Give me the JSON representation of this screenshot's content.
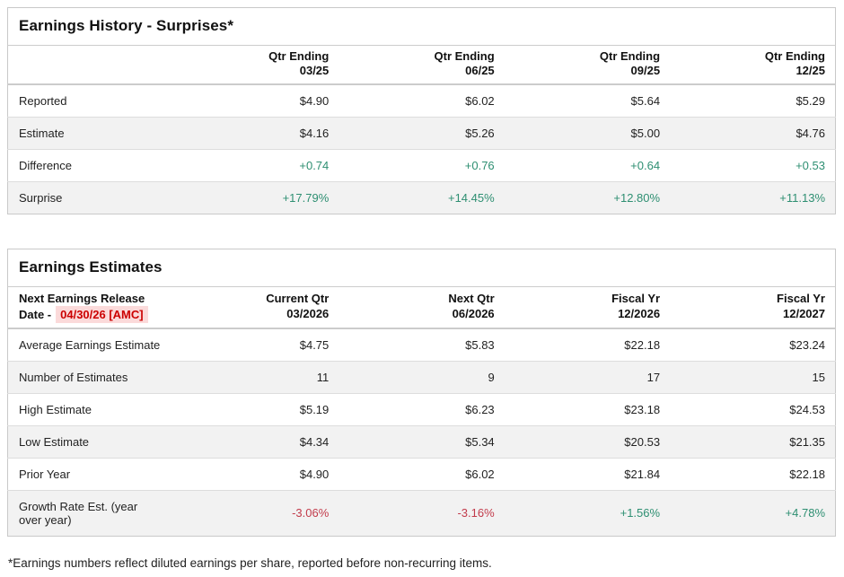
{
  "colors": {
    "positive_green": "#2e8f72",
    "negative_red": "#c23b4b",
    "release_date_red": "#cc0000",
    "release_date_highlight_bg": "#fbdada",
    "alt_row_bg": "#f2f2f2"
  },
  "earnings_history": {
    "title": "Earnings History - Surprises*",
    "columns": [
      {
        "line1": "Qtr Ending",
        "line2": "03/25"
      },
      {
        "line1": "Qtr Ending",
        "line2": "06/25"
      },
      {
        "line1": "Qtr Ending",
        "line2": "09/25"
      },
      {
        "line1": "Qtr Ending",
        "line2": "12/25"
      }
    ],
    "rows": [
      {
        "label": "Reported",
        "values": [
          "$4.90",
          "$6.02",
          "$5.64",
          "$5.29"
        ],
        "value_class": "dark"
      },
      {
        "label": "Estimate",
        "values": [
          "$4.16",
          "$5.26",
          "$5.00",
          "$4.76"
        ],
        "value_class": "dark"
      },
      {
        "label": "Difference",
        "values": [
          "+0.74",
          "+0.76",
          "+0.64",
          "+0.53"
        ],
        "value_class": "green"
      },
      {
        "label": "Surprise",
        "values": [
          "+17.79%",
          "+14.45%",
          "+12.80%",
          "+11.13%"
        ],
        "value_class": "green"
      }
    ]
  },
  "earnings_estimates": {
    "title": "Earnings Estimates",
    "release_date_label": "Next Earnings Release Date -",
    "release_date_value": "04/30/26 [AMC]",
    "columns": [
      {
        "line1": "Current Qtr",
        "line2": "03/2026"
      },
      {
        "line1": "Next Qtr",
        "line2": "06/2026"
      },
      {
        "line1": "Fiscal Yr",
        "line2": "12/2026"
      },
      {
        "line1": "Fiscal Yr",
        "line2": "12/2027"
      }
    ],
    "rows": [
      {
        "label": "Average Earnings Estimate",
        "values": [
          "$4.75",
          "$5.83",
          "$22.18",
          "$23.24"
        ],
        "value_class": "dark"
      },
      {
        "label": "Number of Estimates",
        "values": [
          "11",
          "9",
          "17",
          "15"
        ],
        "value_class": "dark"
      },
      {
        "label": "High Estimate",
        "values": [
          "$5.19",
          "$6.23",
          "$23.18",
          "$24.53"
        ],
        "value_class": "dark"
      },
      {
        "label": "Low Estimate",
        "values": [
          "$4.34",
          "$5.34",
          "$20.53",
          "$21.35"
        ],
        "value_class": "dark"
      },
      {
        "label": "Prior Year",
        "values": [
          "$4.90",
          "$6.02",
          "$21.84",
          "$22.18"
        ],
        "value_class": "dark"
      },
      {
        "label": "Growth Rate Est. (year over year)",
        "values": [
          "-3.06%",
          "-3.16%",
          "+1.56%",
          "+4.78%"
        ],
        "value_classes": [
          "red",
          "red",
          "green",
          "green"
        ]
      }
    ]
  },
  "footnote": "*Earnings numbers reflect diluted earnings per share, reported before non-recurring items."
}
